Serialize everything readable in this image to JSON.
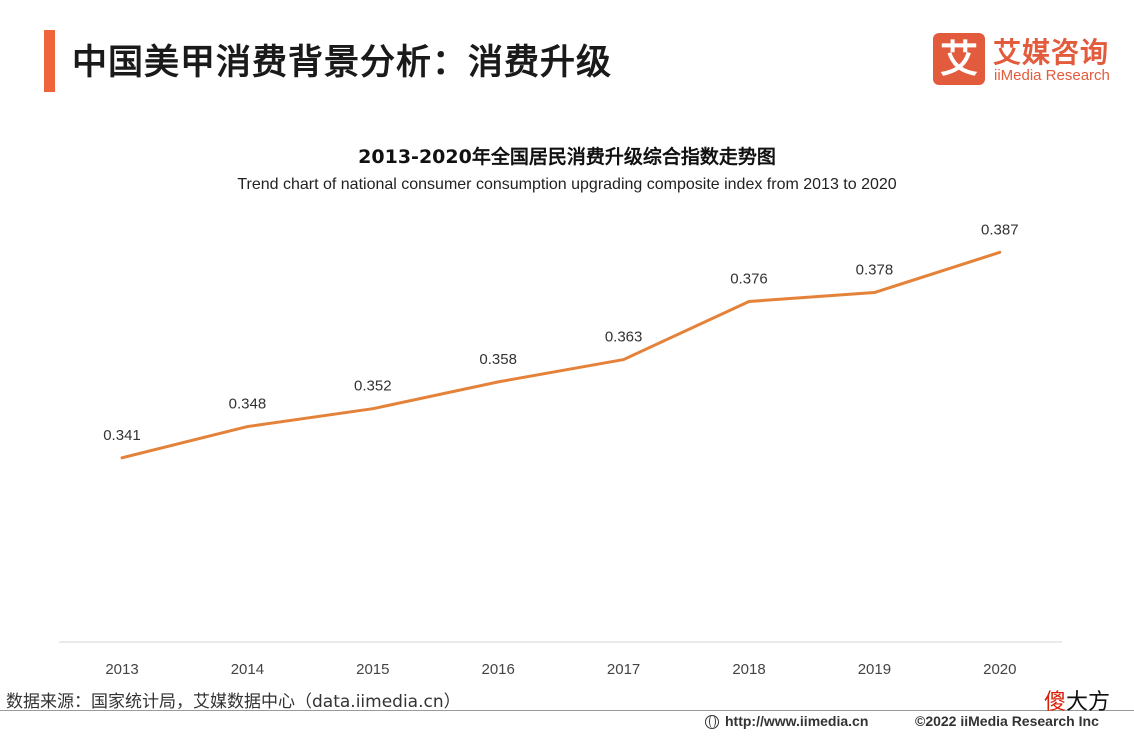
{
  "header": {
    "title": "中国美甲消费背景分析：消费升级",
    "accent_color": "#f0643c"
  },
  "logo": {
    "mark": "艾",
    "name_cn": "艾媒咨询",
    "name_en": "iiMedia Research",
    "color": "#e25b3c"
  },
  "chart_data": {
    "type": "line",
    "title": "2013-2020年全国居民消费升级综合指数走势图",
    "subtitle": "Trend chart of national consumer consumption upgrading composite index from 2013 to 2020",
    "categories": [
      "2013",
      "2014",
      "2015",
      "2016",
      "2017",
      "2018",
      "2019",
      "2020"
    ],
    "series": [
      {
        "values": [
          0.341,
          0.348,
          0.352,
          0.358,
          0.363,
          0.376,
          0.378,
          0.387
        ],
        "labels": [
          "0.341",
          "0.348",
          "0.352",
          "0.358",
          "0.363",
          "0.376",
          "0.378",
          "0.387"
        ],
        "color": "#e5823a"
      }
    ],
    "ylim": [
      0.3,
      0.392
    ],
    "grid": false,
    "legend": "none"
  },
  "footer": {
    "source": "数据来源：国家统计局，艾媒数据中心（data.iimedia.cn）",
    "url": "http://www.iimedia.cn",
    "copyright": "©2022  iiMedia Research  Inc"
  },
  "watermark": {
    "part1": "傻",
    "part2": "大方"
  }
}
